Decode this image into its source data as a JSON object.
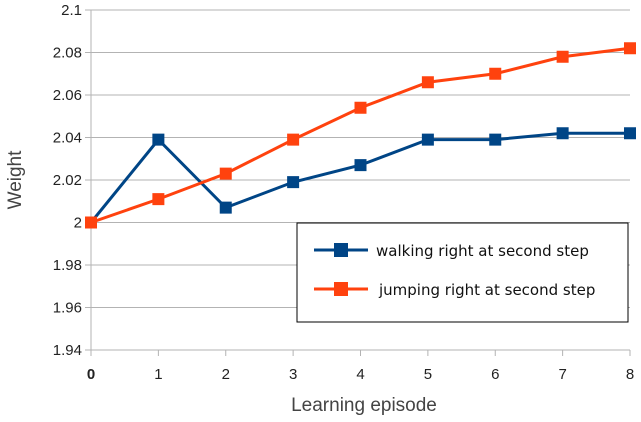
{
  "chart_data": {
    "type": "line",
    "title": "",
    "xlabel": "Learning episode",
    "ylabel": "Weight",
    "x": [
      0,
      1,
      2,
      3,
      4,
      5,
      6,
      7,
      8
    ],
    "x_tick_labels": [
      "0",
      "1",
      "2",
      "3",
      "4",
      "5",
      "6",
      "7",
      "8"
    ],
    "xlim": [
      0,
      8
    ],
    "ylim": [
      1.94,
      2.1
    ],
    "y_tick_labels": [
      "1.94",
      "1.96",
      "1.98",
      "2",
      "2.02",
      "2.04",
      "2.06",
      "2.08",
      "2.1"
    ],
    "y_ticks": [
      1.94,
      1.96,
      1.98,
      2.0,
      2.02,
      2.04,
      2.06,
      2.08,
      2.1
    ],
    "grid": "horizontal",
    "legend_position": "lower-right",
    "series": [
      {
        "name": "walking right at second step",
        "color": "#004586",
        "marker": "square",
        "values": [
          2.0,
          2.039,
          2.007,
          2.019,
          2.027,
          2.039,
          2.039,
          2.042,
          2.042
        ]
      },
      {
        "name": "jumping right at second step",
        "color": "#ff420e",
        "marker": "square",
        "values": [
          2.0,
          2.011,
          2.023,
          2.039,
          2.054,
          2.066,
          2.07,
          2.078,
          2.082
        ]
      }
    ]
  }
}
